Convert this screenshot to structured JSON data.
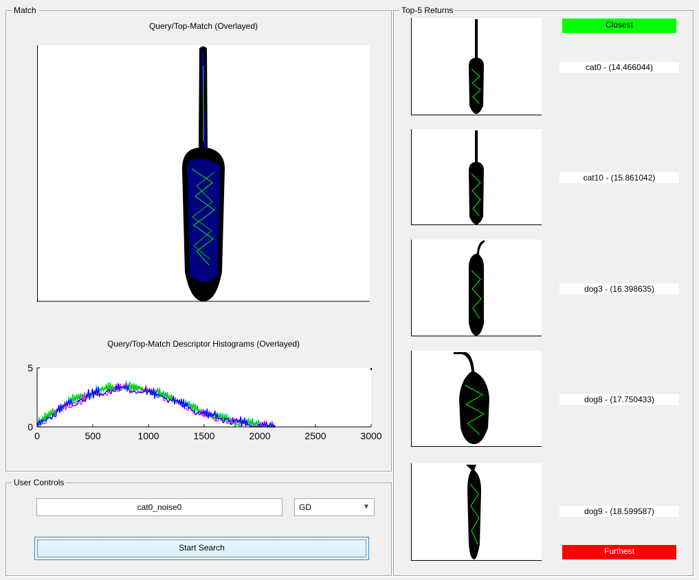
{
  "match_panel": {
    "title": "Match",
    "overlay_title": "Query/Top-Match (Overlayed)",
    "hist_title": "Query/Top-Match Descriptor Histograms (Overlayed)"
  },
  "controls_panel": {
    "title": "User Controls",
    "query_value": "cat0_noise0",
    "descriptor_selected": "GD",
    "search_button": "Start Search"
  },
  "returns_panel": {
    "title": "Top-5 Returns",
    "closest_label": "Closest",
    "furthest_label": "Furthest",
    "closest_color": "#00ff00",
    "furthest_color": "#ff0000",
    "results": [
      {
        "label": "cat0 - (14.466044)",
        "kind": "cat"
      },
      {
        "label": "cat10 - (15.861042)",
        "kind": "cat"
      },
      {
        "label": "dog3 - (16.398635)",
        "kind": "dog"
      },
      {
        "label": "dog8 - (17.750433)",
        "kind": "dog"
      },
      {
        "label": "dog9 - (18.599587)",
        "kind": "dog"
      }
    ]
  },
  "chart_data": {
    "type": "line",
    "title": "Query/Top-Match Descriptor Histograms (Overlayed)",
    "xlim": [
      0,
      3000
    ],
    "ylim": [
      0,
      5
    ],
    "x_ticks": [
      "0",
      "500",
      "1000",
      "1500",
      "2000",
      "2500",
      "3000"
    ],
    "y_ticks": [
      "0",
      "5"
    ],
    "series": [
      {
        "color": "#00c0c0",
        "x": [
          0,
          250,
          500,
          750,
          1000,
          1250,
          1500,
          1750,
          2000,
          2130
        ],
        "y": [
          0.3,
          2.0,
          3.0,
          3.6,
          3.3,
          2.4,
          1.3,
          0.6,
          0.2,
          0
        ]
      },
      {
        "color": "#ff00ff",
        "x": [
          0,
          250,
          500,
          750,
          1000,
          1250,
          1500,
          1750,
          2000,
          2130
        ],
        "y": [
          0.2,
          1.8,
          2.8,
          3.4,
          3.1,
          2.2,
          1.1,
          0.5,
          0.15,
          0
        ]
      },
      {
        "color": "#00cc00",
        "x": [
          0,
          250,
          500,
          750,
          1000,
          1250,
          1500,
          1750,
          2000,
          2130
        ],
        "y": [
          0.3,
          2.1,
          3.1,
          3.5,
          3.2,
          2.3,
          1.2,
          0.55,
          0.2,
          0
        ]
      },
      {
        "color": "#0000ff",
        "x": [
          0,
          250,
          500,
          750,
          1000,
          1250,
          1500,
          1750,
          2000,
          2130
        ],
        "y": [
          0.25,
          1.9,
          2.9,
          3.4,
          3.0,
          2.2,
          1.2,
          0.6,
          0.2,
          0
        ]
      }
    ]
  }
}
